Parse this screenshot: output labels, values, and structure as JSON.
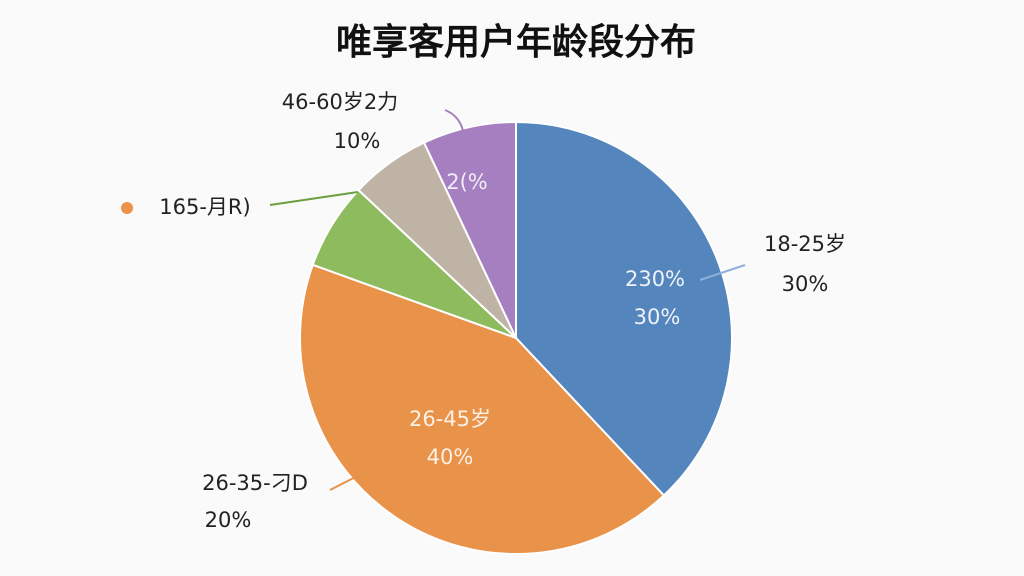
{
  "chart_data": {
    "type": "pie",
    "title": "唯享客用户年龄段分布",
    "values": [
      38,
      42.5,
      6.5,
      6,
      7
    ],
    "colors": [
      "#5585bd",
      "#e8924a",
      "#8dbb5e",
      "#bfb3a6",
      "#a57fc0"
    ],
    "annotations": [
      "46-60岁2力",
      "10%",
      "165-月R)",
      "18-25岁",
      "30%",
      "230%",
      "30%",
      "26-45岁",
      "40%",
      "26-35-刁D",
      "20%",
      "2(%"
    ]
  }
}
